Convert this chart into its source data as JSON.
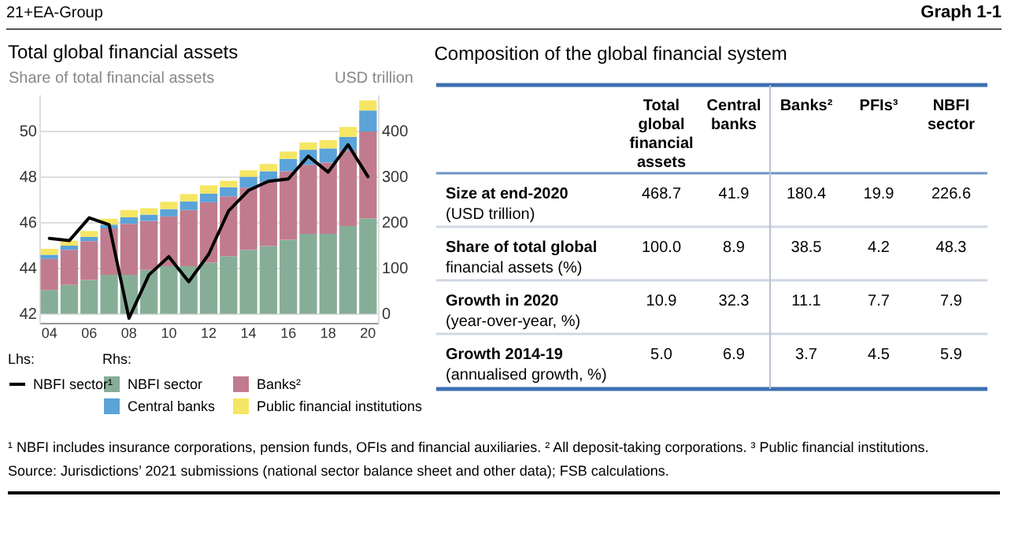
{
  "chart_data": [
    {
      "type": "bar",
      "stacked": true,
      "title": "Total global financial assets",
      "ylabel": "Share of total financial assets",
      "y2label": "USD trillion",
      "categories": [
        "04",
        null,
        "06",
        null,
        "08",
        null,
        "10",
        null,
        "12",
        null,
        "14",
        null,
        "16",
        null,
        "18",
        null,
        "20"
      ],
      "ylim": [
        41.6,
        51.6
      ],
      "yticks": [
        42,
        44,
        46,
        48,
        50
      ],
      "y2lim": [
        -20,
        480
      ],
      "y2ticks": [
        0,
        100,
        200,
        300,
        400
      ],
      "grid": "y",
      "legend": "bottom",
      "marker": "none",
      "line_style": "solid",
      "series": [
        {
          "name": "NBFI sector",
          "axis": "y2",
          "color": "#86ae97",
          "values": [
            52,
            63,
            74,
            85,
            85,
            96,
            104,
            104,
            112,
            126,
            140,
            148,
            162,
            175,
            175,
            192,
            209
          ]
        },
        {
          "name": "Banks²",
          "axis": "y2",
          "color": "#c17b8f",
          "values": [
            68,
            77,
            85,
            102,
            112,
            107,
            109,
            123,
            132,
            131,
            136,
            140,
            150,
            151,
            156,
            165,
            190
          ]
        },
        {
          "name": "Central banks",
          "axis": "y2",
          "color": "#5ba3d9",
          "values": [
            9,
            9,
            9,
            8,
            14,
            14,
            16,
            19,
            19,
            20,
            24,
            24,
            27,
            33,
            31,
            30,
            46
          ]
        },
        {
          "name": "Public financial institutions",
          "axis": "y2",
          "color": "#f5e663",
          "values": [
            13,
            11,
            13,
            13,
            16,
            14,
            16,
            16,
            18,
            14,
            14,
            16,
            16,
            16,
            18,
            22,
            22
          ]
        },
        {
          "name": "NBFI sector¹",
          "type": "line",
          "color": "#000000",
          "values": [
            45.3,
            45.2,
            46.2,
            45.9,
            41.8,
            43.7,
            44.5,
            43.4,
            44.6,
            46.5,
            47.4,
            47.8,
            47.9,
            48.9,
            48.2,
            49.4,
            48.0
          ]
        }
      ],
      "annotations": [
        "21+EA-Group",
        "Graph 1-1",
        "Lhs:",
        "Rhs:",
        "¹ NBFI includes insurance corporations, pension funds, OFIs and financial auxiliaries.  ² All deposit-taking corporations.  ³ Public financial institutions.",
        "Source: Jurisdictions’ 2021 submissions (national sector balance sheet and other data); FSB calculations."
      ]
    },
    {
      "type": "other",
      "title": "Composition of the global financial system",
      "categories": [
        "Total global financial assets",
        "Central banks",
        "Banks²",
        "PFIs³",
        "NBFI sector"
      ],
      "y_categories": [
        "Size at end-2020\n(USD trillion)",
        "Share of total global\nfinancial assets (%)",
        "Growth in 2020\n(year-over-year, %)",
        "Growth 2014-19\n(annualised growth, %)"
      ],
      "annotations": [
        "468.7",
        "41.9",
        "180.4",
        "19.9",
        "226.6",
        "100.0",
        "8.9",
        "38.5",
        "4.2",
        "48.3",
        "10.9",
        "32.3",
        "11.1",
        "7.7",
        "7.9",
        "5.0",
        "6.9",
        "3.7",
        "4.5",
        "5.9"
      ]
    }
  ]
}
